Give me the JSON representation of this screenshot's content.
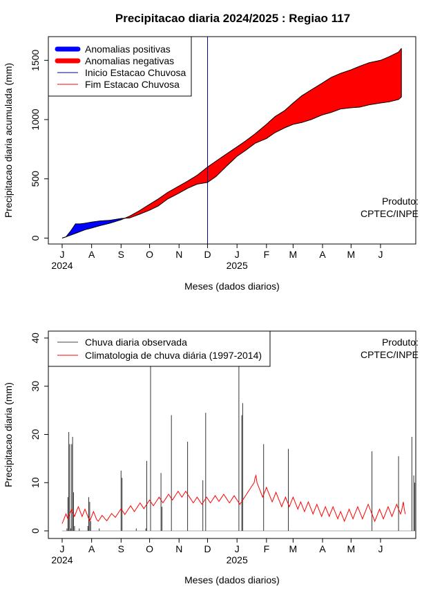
{
  "figure": {
    "title": "Precipitacao diaria 2024/2025 : Regiao 117",
    "credit_line1": "Produto:",
    "credit_line2": "CPTEC/INPE",
    "colors": {
      "positive_anomaly": "#0000ff",
      "negative_anomaly": "#ff0000",
      "rain_start_line": "#00008b",
      "rain_end_line": "#ff0000",
      "observed_bars": "#000000",
      "climatology_line": "#ff0000"
    }
  },
  "month_ticks": [
    "J",
    "A",
    "S",
    "O",
    "N",
    "D",
    "J",
    "F",
    "M",
    "A",
    "M",
    "J"
  ],
  "year_labels": [
    "2024",
    "2025"
  ],
  "chart_data": [
    {
      "type": "area",
      "title": "Precipitacao diaria 2024/2025 : Regiao 117",
      "xlabel": "Meses (dados diarios)",
      "ylabel": "Precipitacao diaria acumulada (mm)",
      "ylim": [
        -50,
        1700
      ],
      "yticks": [
        0,
        500,
        1000,
        1500
      ],
      "x_range_days": [
        0,
        359
      ],
      "legend": {
        "placement": "top-left",
        "entries": [
          "Anomalias positivas",
          "Anomalias negativas",
          "Inicio Estacao Chuvosa",
          "Fim Estacao Chuvosa"
        ]
      },
      "rainy_season_start": "2024-12-01",
      "climatology_cumulative": {
        "x": [
          "2024-07-01",
          "2024-07-05",
          "2024-07-10",
          "2024-07-15",
          "2024-07-20",
          "2024-07-25",
          "2024-08-01",
          "2024-08-10",
          "2024-08-20",
          "2024-09-01",
          "2024-09-10",
          "2024-09-20",
          "2024-10-01",
          "2024-10-10",
          "2024-10-20",
          "2024-11-01",
          "2024-11-10",
          "2024-11-20",
          "2024-12-01",
          "2024-12-10",
          "2024-12-20",
          "2025-01-01",
          "2025-01-10",
          "2025-01-20",
          "2025-02-01",
          "2025-02-10",
          "2025-02-20",
          "2025-03-01",
          "2025-03-10",
          "2025-03-20",
          "2025-04-01",
          "2025-04-10",
          "2025-04-20",
          "2025-05-01",
          "2025-05-10",
          "2025-05-20",
          "2025-06-01",
          "2025-06-10",
          "2025-06-20",
          "2025-06-23"
        ],
        "y": [
          0,
          10,
          25,
          40,
          55,
          70,
          85,
          105,
          125,
          155,
          185,
          230,
          285,
          330,
          385,
          440,
          480,
          530,
          600,
          650,
          705,
          770,
          820,
          880,
          960,
          1025,
          1075,
          1140,
          1200,
          1250,
          1310,
          1355,
          1390,
          1420,
          1450,
          1480,
          1500,
          1530,
          1570,
          1600
        ]
      },
      "observed_cumulative": {
        "x": [
          "2024-07-01",
          "2024-07-05",
          "2024-07-10",
          "2024-07-15",
          "2024-07-20",
          "2024-07-25",
          "2024-08-01",
          "2024-08-10",
          "2024-08-20",
          "2024-09-01",
          "2024-09-10",
          "2024-09-20",
          "2024-10-01",
          "2024-10-10",
          "2024-10-20",
          "2024-11-01",
          "2024-11-10",
          "2024-11-20",
          "2024-12-01",
          "2024-12-10",
          "2024-12-20",
          "2025-01-01",
          "2025-01-10",
          "2025-01-20",
          "2025-02-01",
          "2025-02-10",
          "2025-02-20",
          "2025-03-01",
          "2025-03-10",
          "2025-03-20",
          "2025-04-01",
          "2025-04-10",
          "2025-04-20",
          "2025-05-01",
          "2025-05-10",
          "2025-05-20",
          "2025-06-01",
          "2025-06-10",
          "2025-06-20",
          "2025-06-23"
        ],
        "y": [
          0,
          10,
          60,
          120,
          120,
          125,
          135,
          145,
          150,
          165,
          170,
          200,
          235,
          270,
          330,
          380,
          420,
          455,
          470,
          520,
          600,
          690,
          740,
          800,
          840,
          890,
          930,
          960,
          975,
          1000,
          1040,
          1060,
          1090,
          1100,
          1105,
          1125,
          1140,
          1150,
          1170,
          1190
        ]
      }
    },
    {
      "type": "bar",
      "xlabel": "Meses (dados diarios)",
      "ylabel": "Precipitacao diaria (mm)",
      "ylim": [
        0,
        42
      ],
      "yticks": [
        0,
        10,
        20,
        30,
        40
      ],
      "x_range_days": [
        0,
        359
      ],
      "legend": {
        "placement": "top-left",
        "entries": [
          "Chuva diaria observada",
          "Climatologia de chuva diária (1997-2014)"
        ]
      },
      "observed_daily": [
        0,
        0,
        0,
        0,
        0,
        0.5,
        7,
        20.5,
        18,
        0.5,
        18,
        19.5,
        8,
        1,
        0,
        0,
        0,
        0,
        0.5,
        0,
        0,
        0,
        0,
        0,
        0,
        0,
        0,
        1,
        7,
        6,
        2,
        0,
        0,
        0,
        0,
        0,
        0,
        0,
        0,
        0.5,
        0,
        0,
        0,
        0,
        0,
        0,
        0,
        0,
        0,
        0,
        0,
        0,
        0,
        0,
        0,
        0,
        0,
        0,
        0,
        0,
        0,
        0,
        12.5,
        11,
        0,
        0,
        0,
        0,
        0,
        0,
        0,
        0,
        0,
        0,
        0,
        0,
        0,
        0,
        0.5,
        0,
        0,
        0,
        0,
        0,
        0,
        0,
        0,
        0,
        0.5,
        14.5,
        0,
        0,
        0,
        35,
        0,
        0,
        0,
        0,
        0,
        0,
        0,
        0,
        0,
        0,
        12,
        5,
        0,
        0,
        0,
        0,
        0,
        0,
        0,
        0,
        0,
        24,
        0,
        0,
        0,
        0,
        0,
        0,
        0,
        0,
        0,
        0,
        0,
        0,
        0,
        0,
        0,
        0,
        18.5,
        0,
        0,
        0,
        0,
        0,
        0,
        0,
        0,
        0,
        0,
        0,
        0,
        0,
        0,
        0,
        10.5,
        0,
        0,
        24.5,
        0,
        0,
        0,
        0,
        0,
        0,
        0,
        0,
        0,
        0,
        0,
        0,
        0,
        0,
        0,
        0,
        0,
        0,
        0,
        0,
        0,
        0,
        0,
        0,
        0,
        0,
        0,
        0,
        0,
        0,
        0,
        0,
        0,
        0,
        35.5,
        0,
        0,
        24,
        26.5,
        0,
        0,
        0,
        0,
        0,
        0,
        0,
        0,
        0,
        0,
        0,
        0,
        0,
        0,
        0,
        0,
        0,
        0,
        0,
        0,
        0,
        18,
        0,
        0,
        0,
        0,
        0,
        0,
        0,
        0,
        0,
        0,
        0,
        0,
        0,
        0,
        0,
        0,
        0,
        0,
        0,
        0,
        0,
        0,
        0,
        0,
        0,
        17,
        0,
        0,
        0,
        0,
        0,
        0,
        0,
        0,
        0,
        0,
        0,
        0,
        0,
        0,
        0,
        0,
        0,
        0,
        0,
        0,
        0,
        0,
        0,
        0,
        0,
        0,
        0,
        0,
        0,
        0,
        0,
        0,
        0,
        0,
        0,
        0,
        0,
        0,
        0,
        0,
        0,
        0,
        0,
        0,
        0,
        0,
        0,
        0,
        0,
        0,
        0,
        0,
        0,
        0,
        0,
        0,
        0,
        0,
        0,
        0,
        0,
        0,
        0,
        0,
        0,
        0,
        0,
        0,
        0,
        0,
        0,
        0,
        0,
        0,
        0,
        0,
        0,
        0,
        0,
        0,
        0,
        0,
        0,
        0,
        0,
        0,
        0,
        16.5,
        0,
        0,
        0,
        0,
        0,
        0,
        0,
        0,
        0,
        0,
        0,
        0,
        0,
        0,
        0,
        0,
        0,
        0,
        0,
        0,
        0,
        0,
        0,
        0,
        0,
        0,
        0,
        15.5,
        0,
        0,
        0,
        0,
        0,
        0,
        0,
        0,
        0,
        0,
        0,
        0,
        0,
        19.5,
        0,
        11.5,
        10,
        0,
        0,
        0,
        0,
        0,
        0,
        0,
        0,
        0,
        0,
        0,
        0,
        0,
        0,
        0
      ],
      "climatology_daily": [
        1.5,
        2,
        2.5,
        3,
        3.5,
        3,
        2.5,
        3,
        3.5,
        4,
        4.5,
        4,
        3.5,
        3,
        3.5,
        4,
        4.5,
        5,
        4.5,
        4,
        3.5,
        3,
        3.5,
        4,
        4.5,
        4,
        3.5,
        3,
        2.5,
        2,
        2.5,
        3,
        3.5,
        4,
        3.5,
        3,
        2.5,
        2.2,
        2,
        2.3,
        2.6,
        2.9,
        3.2,
        3,
        2.8,
        2.5,
        2.3,
        2.1,
        2.4,
        2.7,
        3,
        3.3,
        3.6,
        3.4,
        3.2,
        3,
        2.8,
        3.1,
        3.4,
        3.7,
        4,
        4.3,
        4.6,
        4.3,
        4,
        3.7,
        3.4,
        3.7,
        4,
        4.3,
        4.6,
        4.9,
        5.2,
        4.9,
        4.6,
        4.3,
        4,
        4.3,
        4.6,
        4.9,
        5.2,
        5.5,
        5.8,
        5.5,
        5.2,
        4.9,
        4.6,
        4.9,
        5.2,
        5.5,
        5.8,
        6.1,
        6.4,
        6.1,
        5.8,
        5.5,
        5.2,
        5.5,
        5.8,
        6.1,
        6.4,
        6.7,
        7,
        6.7,
        6.4,
        6.1,
        5.8,
        6.1,
        6.4,
        6.7,
        7,
        7.3,
        7.6,
        7.3,
        7,
        6.7,
        6.4,
        6.7,
        7,
        7.3,
        7.6,
        7.9,
        8.2,
        7.9,
        7.6,
        7.3,
        7,
        7.3,
        7.6,
        7.9,
        8.2,
        7.9,
        7.6,
        7.3,
        7,
        6.7,
        6.4,
        6.1,
        5.8,
        6.1,
        6.4,
        6.7,
        7,
        6.7,
        6.4,
        6.1,
        5.8,
        5.5,
        5.8,
        6.1,
        6.4,
        6.7,
        7,
        6.7,
        6.4,
        6.1,
        5.8,
        6.1,
        6.4,
        6.7,
        7,
        7.3,
        7,
        6.7,
        6.4,
        6.1,
        6.4,
        6.7,
        7,
        7.3,
        7.6,
        7.3,
        7,
        6.7,
        6.4,
        6.1,
        5.8,
        6.1,
        6.4,
        6.7,
        7,
        7.3,
        7,
        6.7,
        6.4,
        6.1,
        5.8,
        5.5,
        5.8,
        6.1,
        6.4,
        6.7,
        7,
        7.3,
        7.6,
        7.9,
        8.2,
        8.5,
        8.8,
        9.1,
        9.4,
        9.7,
        10,
        11,
        11.5,
        10,
        9.5,
        9,
        8.5,
        8,
        7.5,
        7,
        7.5,
        8,
        8.5,
        9,
        8.5,
        8,
        7.5,
        7,
        6.5,
        6,
        6.5,
        7,
        7.5,
        8,
        7.5,
        7,
        6.5,
        6,
        5.5,
        5,
        5.5,
        6,
        6.5,
        7,
        6.5,
        6,
        5.5,
        5,
        5.5,
        6,
        6.5,
        7,
        6.5,
        6,
        5.5,
        5,
        4.5,
        5,
        5.5,
        6,
        5.5,
        5,
        4.5,
        4,
        4.5,
        5,
        5.5,
        6,
        5.5,
        5,
        4.5,
        4,
        3.5,
        4,
        4.5,
        5,
        5.5,
        5,
        4.5,
        4,
        3.5,
        3,
        3.5,
        4,
        4.5,
        5,
        4.5,
        4,
        3.5,
        3,
        3.5,
        4,
        4.5,
        5,
        4.5,
        4,
        3.5,
        3,
        2.5,
        3,
        3.5,
        4,
        3.5,
        3,
        2.5,
        2,
        2.5,
        3,
        3.5,
        4,
        4.5,
        4,
        3.5,
        3,
        2.5,
        3,
        3.5,
        4,
        4.5,
        5,
        4.5,
        4,
        3.5,
        3,
        2.5,
        3,
        3.5,
        4,
        4.5,
        5,
        5.5,
        5,
        4.5,
        4,
        3.5,
        3,
        2.5,
        2,
        2.5,
        3,
        3.5,
        4,
        4.5,
        4,
        3.5,
        3,
        2.5,
        3,
        3.5,
        4,
        4.5,
        5,
        4.5,
        4,
        3.5,
        3,
        3.5,
        4,
        4.5,
        5,
        5.5,
        5,
        4.5,
        4,
        3.5,
        4,
        5,
        6,
        4.5,
        3.5
      ]
    }
  ]
}
